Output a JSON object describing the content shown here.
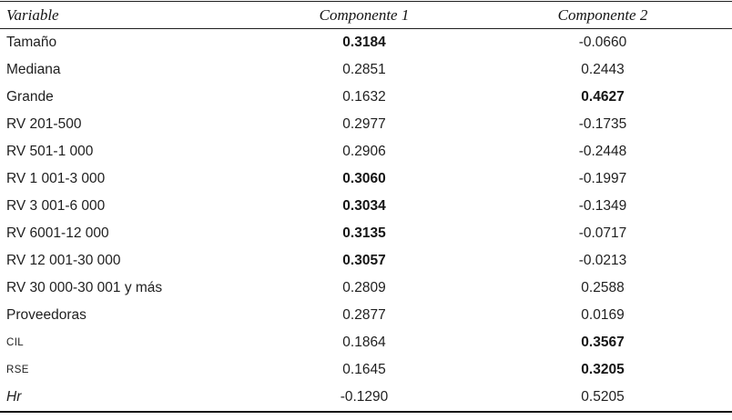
{
  "table": {
    "columns": [
      {
        "label": "Variable"
      },
      {
        "label": "Componente 1"
      },
      {
        "label": "Componente 2"
      }
    ],
    "rows": [
      {
        "variable": "Tamaño",
        "style": "normal",
        "c1": "0.3184",
        "c1_bold": true,
        "c2": "-0.0660",
        "c2_bold": false
      },
      {
        "variable": "Mediana",
        "style": "normal",
        "c1": "0.2851",
        "c1_bold": false,
        "c2": "0.2443",
        "c2_bold": false
      },
      {
        "variable": "Grande",
        "style": "normal",
        "c1": "0.1632",
        "c1_bold": false,
        "c2": "0.4627",
        "c2_bold": true
      },
      {
        "variable": "RV 201-500",
        "style": "normal",
        "c1": "0.2977",
        "c1_bold": false,
        "c2": "-0.1735",
        "c2_bold": false
      },
      {
        "variable": "RV 501-1 000",
        "style": "normal",
        "c1": "0.2906",
        "c1_bold": false,
        "c2": "-0.2448",
        "c2_bold": false
      },
      {
        "variable": "RV 1 001-3 000",
        "style": "normal",
        "c1": "0.3060",
        "c1_bold": true,
        "c2": "-0.1997",
        "c2_bold": false
      },
      {
        "variable": "RV 3 001-6 000",
        "style": "normal",
        "c1": "0.3034",
        "c1_bold": true,
        "c2": "-0.1349",
        "c2_bold": false
      },
      {
        "variable": "RV 6001-12 000",
        "style": "normal",
        "c1": "0.3135",
        "c1_bold": true,
        "c2": "-0.0717",
        "c2_bold": false
      },
      {
        "variable": "RV 12 001-30 000",
        "style": "normal",
        "c1": "0.3057",
        "c1_bold": true,
        "c2": "-0.0213",
        "c2_bold": false
      },
      {
        "variable": "RV 30 000-30 001 y más",
        "style": "normal",
        "c1": "0.2809",
        "c1_bold": false,
        "c2": "0.2588",
        "c2_bold": false
      },
      {
        "variable": "Proveedoras",
        "style": "normal",
        "c1": "0.2877",
        "c1_bold": false,
        "c2": "0.0169",
        "c2_bold": false
      },
      {
        "variable": "CIL",
        "style": "smallcaps",
        "c1": "0.1864",
        "c1_bold": false,
        "c2": "0.3567",
        "c2_bold": true
      },
      {
        "variable": "RSE",
        "style": "smallcaps",
        "c1": "0.1645",
        "c1_bold": false,
        "c2": "0.3205",
        "c2_bold": true
      },
      {
        "variable": "Hr",
        "style": "italic",
        "c1": "-0.1290",
        "c1_bold": false,
        "c2": "0.5205",
        "c2_bold": false
      }
    ]
  },
  "colors": {
    "text": "#1f1f1f",
    "rule": "#1e1e1e",
    "background": "#ffffff"
  }
}
